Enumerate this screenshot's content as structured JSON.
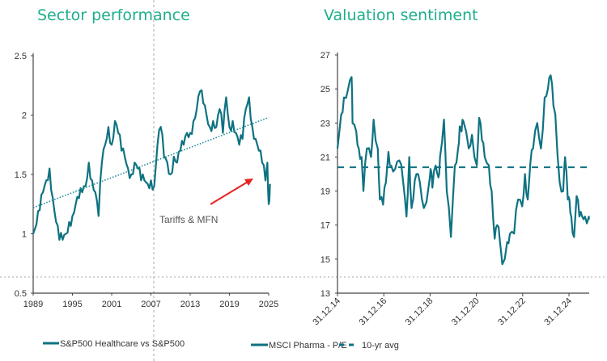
{
  "chart_data": [
    {
      "type": "line",
      "title": "Sector performance",
      "xlabel": "",
      "ylabel": "",
      "xlim": [
        1989,
        2025
      ],
      "ylim": [
        0.5,
        2.5
      ],
      "x_ticks": [
        "1989",
        "1995",
        "2001",
        "2007",
        "2013",
        "2019",
        "2025"
      ],
      "y_ticks": [
        "0.5",
        "1",
        "1.5",
        "2",
        "2.5"
      ],
      "grid": false,
      "legend_position": "bottom",
      "annotation": "Tariffs & MFN",
      "colors": {
        "series": "#0e7281",
        "trend": "#1a8a96",
        "annotation_arrow": "#e8231f"
      },
      "series": [
        {
          "name": "S&P500 Healthcare vs S&P500",
          "x": [
            1989,
            1989.5,
            1990,
            1990.5,
            1991,
            1991.5,
            1992,
            1992.5,
            1993,
            1993.5,
            1994,
            1994.5,
            1995,
            1995.5,
            1996,
            1996.5,
            1997,
            1997.5,
            1998,
            1998.5,
            1999,
            1999.5,
            2000,
            2000.5,
            2001,
            2001.5,
            2002,
            2002.5,
            2003,
            2003.5,
            2004,
            2004.5,
            2005,
            2005.5,
            2006,
            2006.5,
            2007,
            2007.5,
            2008,
            2008.5,
            2009,
            2009.5,
            2010,
            2010.5,
            2011,
            2011.5,
            2012,
            2012.5,
            2013,
            2013.5,
            2014,
            2014.5,
            2015,
            2015.5,
            2016,
            2016.5,
            2017,
            2017.5,
            2018,
            2018.5,
            2019,
            2019.5,
            2020,
            2020.5,
            2021,
            2021.5,
            2022,
            2022.5,
            2023,
            2023.5,
            2024,
            2024.5,
            2024.8,
            2025,
            2025.2
          ],
          "y": [
            1.0,
            1.08,
            1.2,
            1.35,
            1.45,
            1.55,
            1.3,
            1.1,
            0.95,
            0.95,
            1.0,
            1.1,
            1.15,
            1.25,
            1.3,
            1.35,
            1.4,
            1.6,
            1.45,
            1.35,
            1.15,
            1.6,
            1.75,
            1.9,
            1.75,
            1.95,
            1.85,
            1.7,
            1.65,
            1.55,
            1.5,
            1.6,
            1.55,
            1.45,
            1.45,
            1.42,
            1.45,
            1.4,
            1.75,
            1.9,
            1.65,
            1.6,
            1.5,
            1.65,
            1.6,
            1.7,
            1.75,
            1.85,
            1.85,
            1.95,
            2.05,
            2.2,
            2.1,
            2.0,
            1.9,
            1.95,
            1.9,
            2.05,
            1.85,
            2.15,
            1.9,
            1.95,
            1.85,
            1.75,
            1.8,
            2.05,
            2.15,
            1.9,
            1.8,
            1.7,
            1.6,
            1.45,
            1.6,
            1.25,
            1.42
          ]
        },
        {
          "kind": "trendline",
          "style": "dotted",
          "x": [
            1989,
            2025
          ],
          "y": [
            1.22,
            1.98
          ]
        }
      ]
    },
    {
      "type": "line",
      "title": "Valuation sentiment",
      "xlabel": "",
      "ylabel": "",
      "ylim": [
        13,
        27
      ],
      "x_ticks": [
        "31.12.14",
        "31.12.16",
        "31.12.18",
        "31.12.20",
        "31.12.22",
        "31.12.24"
      ],
      "y_ticks": [
        "13",
        "15",
        "17",
        "19",
        "21",
        "23",
        "25",
        "27"
      ],
      "grid": false,
      "legend_position": "bottom",
      "colors": {
        "series": "#0e7281",
        "avg": "#0e7281"
      },
      "series": [
        {
          "name": "MSCI Pharma - P/E",
          "x": [
            2015.0,
            2015.16,
            2015.28,
            2015.46,
            2015.61,
            2015.65,
            2015.81,
            2015.92,
            2016.04,
            2016.12,
            2016.27,
            2016.45,
            2016.56,
            2016.74,
            2016.83,
            2016.97,
            2017.09,
            2017.2,
            2017.32,
            2017.49,
            2017.67,
            2017.84,
            2017.98,
            2018.1,
            2018.2,
            2018.27,
            2018.41,
            2018.56,
            2018.73,
            2018.96,
            2019.02,
            2019.1,
            2019.24,
            2019.36,
            2019.43,
            2019.6,
            2019.72,
            2019.9,
            2020.07,
            2020.21,
            2020.28,
            2020.36,
            2020.44,
            2020.67,
            2020.81,
            2021.02,
            2021.12,
            2021.24,
            2021.36,
            2021.54,
            2021.66,
            2021.79,
            2021.9,
            2022.02,
            2022.12,
            2022.33,
            2022.45,
            2022.63,
            2022.8,
            2022.98,
            2023.1,
            2023.22,
            2023.33,
            2023.45,
            2023.63,
            2023.79,
            2023.95,
            2024.09,
            2024.21,
            2024.33,
            2024.41,
            2024.6,
            2024.75,
            2024.83,
            2024.95,
            2025.02,
            2025.1,
            2025.22,
            2025.33,
            2025.45,
            2025.57,
            2025.69,
            2025.86,
            2025.86
          ],
          "y": [
            21.5,
            23.5,
            24.5,
            25,
            25.7,
            23,
            22.5,
            21.5,
            21,
            19,
            21.5,
            21,
            23.2,
            21.5,
            18.5,
            18.2,
            19.5,
            21.3,
            20.5,
            20.3,
            20.8,
            19.5,
            17.5,
            21,
            18,
            18.5,
            20,
            19.5,
            18,
            19.5,
            20.3,
            19.2,
            20.5,
            19.8,
            21,
            23.2,
            19,
            16.3,
            20.5,
            21.5,
            22.8,
            22.5,
            23.1,
            21.5,
            22.3,
            20.5,
            23.3,
            22,
            21,
            20.5,
            19,
            16.2,
            17,
            16,
            14.7,
            16,
            16.5,
            16.5,
            18.5,
            18.1,
            20,
            18.5,
            20.6,
            21.5,
            23,
            21.5,
            24.5,
            25,
            25.8,
            24,
            23.5,
            19.5,
            19,
            21,
            18.5,
            18.5,
            17.5,
            16.3,
            18.7,
            17.5,
            17.5,
            17.5,
            17.5,
            17.5
          ]
        },
        {
          "name": "10-yr avg",
          "style": "dashed",
          "y": 20.4
        }
      ]
    }
  ]
}
